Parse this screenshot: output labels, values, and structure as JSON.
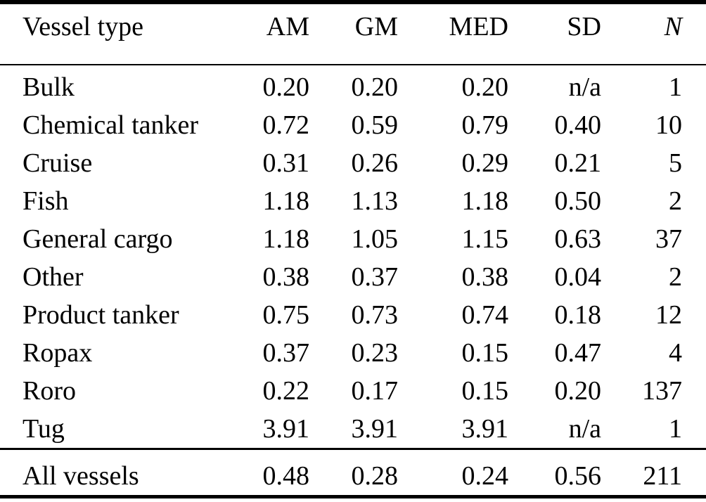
{
  "table": {
    "columns": [
      "Vessel type",
      "AM",
      "GM",
      "MED",
      "SD",
      "N"
    ],
    "rows": [
      [
        "Bulk",
        "0.20",
        "0.20",
        "0.20",
        "n/a",
        "1"
      ],
      [
        "Chemical tanker",
        "0.72",
        "0.59",
        "0.79",
        "0.40",
        "10"
      ],
      [
        "Cruise",
        "0.31",
        "0.26",
        "0.29",
        "0.21",
        "5"
      ],
      [
        "Fish",
        "1.18",
        "1.13",
        "1.18",
        "0.50",
        "2"
      ],
      [
        "General cargo",
        "1.18",
        "1.05",
        "1.15",
        "0.63",
        "37"
      ],
      [
        "Other",
        "0.38",
        "0.37",
        "0.38",
        "0.04",
        "2"
      ],
      [
        "Product tanker",
        "0.75",
        "0.73",
        "0.74",
        "0.18",
        "12"
      ],
      [
        "Ropax",
        "0.37",
        "0.23",
        "0.15",
        "0.47",
        "4"
      ],
      [
        "Roro",
        "0.22",
        "0.17",
        "0.15",
        "0.20",
        "137"
      ],
      [
        "Tug",
        "3.91",
        "3.91",
        "3.91",
        "n/a",
        "1"
      ]
    ],
    "footer": [
      "All vessels",
      "0.48",
      "0.28",
      "0.24",
      "0.56",
      "211"
    ],
    "text_color": "#000000",
    "rule_color": "#000000",
    "background": "#ffffff"
  }
}
